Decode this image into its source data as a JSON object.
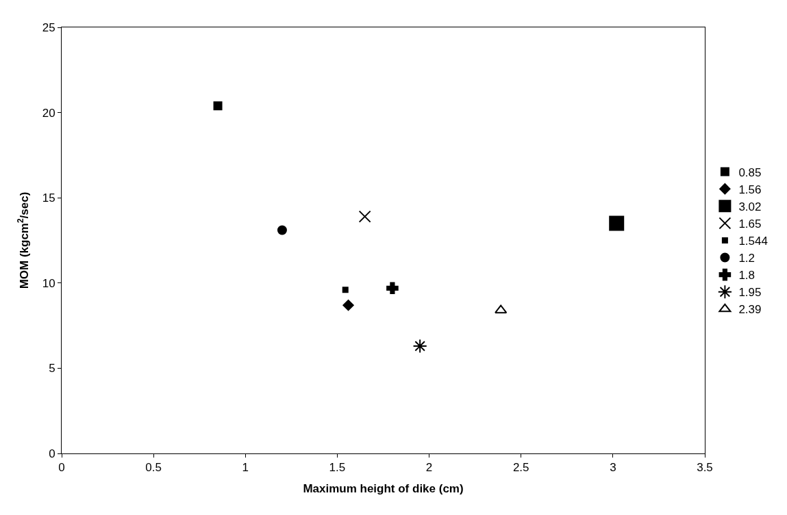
{
  "chart_data": {
    "type": "scatter",
    "xlabel": "Maximum height of dike (cm)",
    "ylabel": "MOM (kgcm$^{2}$/sec)",
    "xlim": [
      0,
      3.5
    ],
    "xticks": [
      0,
      0.5,
      1,
      1.5,
      2,
      2.5,
      3,
      3.5
    ],
    "ylim": [
      0,
      25
    ],
    "yticks": [
      0,
      5,
      10,
      15,
      20,
      25
    ],
    "legend": "right",
    "series": [
      {
        "name": "0.85",
        "color": "#000000",
        "marker": "square",
        "x": [
          0.85
        ],
        "values": [
          20.4
        ]
      },
      {
        "name": "1.56",
        "color": "#000000",
        "marker": "diamond",
        "x": [
          1.56
        ],
        "values": [
          8.7
        ]
      },
      {
        "name": "3.02",
        "color": "#000000",
        "marker": "square",
        "x": [
          3.02
        ],
        "values": [
          13.5
        ]
      },
      {
        "name": "1.65",
        "color": "#000000",
        "marker": "cross",
        "x": [
          1.65
        ],
        "values": [
          13.9
        ]
      },
      {
        "name": "1.544",
        "color": "#000000",
        "marker": "square",
        "x": [
          1.544
        ],
        "values": [
          9.6
        ]
      },
      {
        "name": "1.2",
        "color": "#000000",
        "marker": "circle",
        "x": [
          1.2
        ],
        "values": [
          13.1
        ]
      },
      {
        "name": "1.8",
        "color": "#000000",
        "marker": "cross",
        "x": [
          1.8
        ],
        "values": [
          9.7
        ]
      },
      {
        "name": "1.95",
        "color": "#000000",
        "marker": "cross",
        "x": [
          1.95
        ],
        "values": [
          6.3
        ]
      },
      {
        "name": "2.39",
        "color": "#000000",
        "marker": "triangle",
        "x": [
          2.39
        ],
        "values": [
          8.4
        ]
      }
    ]
  }
}
